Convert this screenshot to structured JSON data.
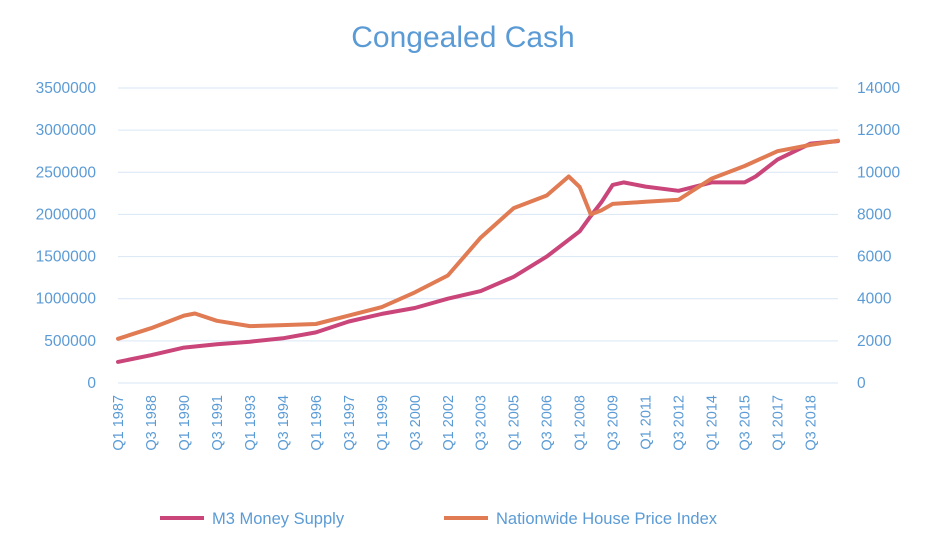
{
  "chart_data": {
    "type": "line",
    "title": "Congealed Cash",
    "xlabel": "",
    "ylabel": "",
    "y_left": {
      "min": 0,
      "max": 3500000,
      "step": 500000,
      "ticks": [
        "0",
        "500000",
        "1000000",
        "1500000",
        "2000000",
        "2500000",
        "3000000",
        "3500000"
      ]
    },
    "y_right": {
      "min": 0,
      "max": 14000,
      "step": 2000,
      "ticks": [
        "0",
        "2000",
        "4000",
        "6000",
        "8000",
        "10000",
        "12000",
        "14000"
      ]
    },
    "x_tick_labels": [
      "Q1 1987",
      "Q3 1988",
      "Q1 1990",
      "Q3 1991",
      "Q1 1993",
      "Q3 1994",
      "Q1 1996",
      "Q3 1997",
      "Q1 1999",
      "Q3 2000",
      "Q1 2002",
      "Q3 2003",
      "Q1 2005",
      "Q3 2006",
      "Q1 2008",
      "Q3 2009",
      "Q1 2011",
      "Q3 2012",
      "Q1 2014",
      "Q3 2015",
      "Q1 2017",
      "Q3 2018"
    ],
    "grid": true,
    "legend_position": "bottom",
    "series": [
      {
        "name": "M3 Money Supply",
        "axis": "left",
        "color": "#c9457a",
        "points": [
          [
            "Q1 1987",
            250000
          ],
          [
            "Q3 1988",
            330000
          ],
          [
            "Q1 1990",
            420000
          ],
          [
            "Q3 1991",
            460000
          ],
          [
            "Q1 1993",
            490000
          ],
          [
            "Q3 1994",
            530000
          ],
          [
            "Q1 1996",
            600000
          ],
          [
            "Q3 1997",
            730000
          ],
          [
            "Q1 1999",
            820000
          ],
          [
            "Q3 2000",
            890000
          ],
          [
            "Q1 2002",
            1000000
          ],
          [
            "Q3 2003",
            1090000
          ],
          [
            "Q1 2005",
            1260000
          ],
          [
            "Q3 2006",
            1500000
          ],
          [
            "Q1 2008",
            1800000
          ],
          [
            "Q3 2008",
            1980000
          ],
          [
            "Q1 2009",
            2150000
          ],
          [
            "Q3 2009",
            2350000
          ],
          [
            "Q1 2010",
            2380000
          ],
          [
            "Q1 2011",
            2330000
          ],
          [
            "Q3 2012",
            2280000
          ],
          [
            "Q1 2014",
            2380000
          ],
          [
            "Q3 2015",
            2380000
          ],
          [
            "Q1 2016",
            2450000
          ],
          [
            "Q1 2017",
            2650000
          ],
          [
            "Q3 2018",
            2840000
          ],
          [
            "Q4 2019",
            2870000
          ]
        ]
      },
      {
        "name": "Nationwide House Price Index",
        "axis": "right",
        "color": "#e07b53",
        "points": [
          [
            "Q1 1987",
            2100
          ],
          [
            "Q3 1988",
            2600
          ],
          [
            "Q1 1990",
            3200
          ],
          [
            "Q3 1990",
            3300
          ],
          [
            "Q3 1991",
            2950
          ],
          [
            "Q1 1993",
            2700
          ],
          [
            "Q3 1994",
            2750
          ],
          [
            "Q1 1996",
            2800
          ],
          [
            "Q3 1997",
            3200
          ],
          [
            "Q1 1999",
            3600
          ],
          [
            "Q3 2000",
            4300
          ],
          [
            "Q1 2002",
            5100
          ],
          [
            "Q3 2003",
            6900
          ],
          [
            "Q1 2005",
            8300
          ],
          [
            "Q3 2006",
            8900
          ],
          [
            "Q3 2007",
            9800
          ],
          [
            "Q1 2008",
            9300
          ],
          [
            "Q3 2008",
            8000
          ],
          [
            "Q1 2009",
            8200
          ],
          [
            "Q3 2009",
            8500
          ],
          [
            "Q1 2011",
            8600
          ],
          [
            "Q3 2012",
            8700
          ],
          [
            "Q1 2014",
            9700
          ],
          [
            "Q3 2015",
            10300
          ],
          [
            "Q1 2017",
            11000
          ],
          [
            "Q3 2018",
            11300
          ],
          [
            "Q4 2019",
            11500
          ]
        ]
      }
    ]
  }
}
